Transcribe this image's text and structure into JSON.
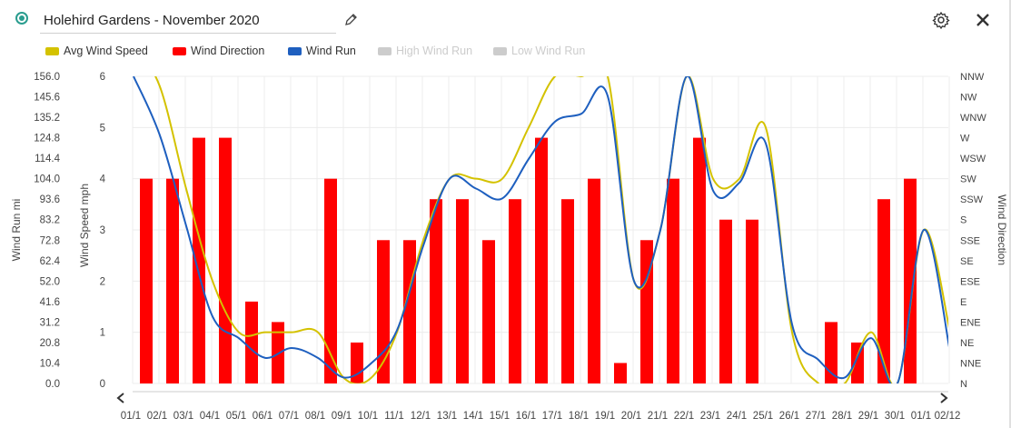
{
  "header": {
    "title": "Holehird Gardens - November 2020",
    "icons": [
      "radio-icon",
      "pencil-icon",
      "gear-icon",
      "close-icon"
    ]
  },
  "legend": [
    {
      "label": "Avg Wind Speed",
      "color": "#d4c200",
      "enabled": true
    },
    {
      "label": "Wind Direction",
      "color": "#ff0000",
      "enabled": true
    },
    {
      "label": "Wind Run",
      "color": "#1e5fbf",
      "enabled": true
    },
    {
      "label": "High Wind Run",
      "color": "#cccccc",
      "enabled": false
    },
    {
      "label": "Low Wind Run",
      "color": "#cccccc",
      "enabled": false
    }
  ],
  "chart_data": {
    "type": "bar",
    "categories": [
      "01/11",
      "02/11",
      "03/11",
      "04/11",
      "05/11",
      "06/11",
      "07/11",
      "08/11",
      "09/11",
      "10/11",
      "11/11",
      "12/11",
      "13/11",
      "14/11",
      "15/11",
      "16/11",
      "17/11",
      "18/11",
      "19/11",
      "20/11",
      "21/11",
      "22/11",
      "23/11",
      "24/11",
      "25/11",
      "26/11",
      "27/11",
      "28/11",
      "29/11",
      "30/11",
      "01/12",
      "02/12"
    ],
    "x_tick_labels": [
      "01/1",
      "02/1",
      "03/1",
      "04/1",
      "05/1",
      "06/1",
      "07/1",
      "08/1",
      "09/1",
      "10/1",
      "11/1",
      "12/1",
      "13/1",
      "14/1",
      "15/1",
      "16/1",
      "17/1",
      "18/1",
      "19/1",
      "20/1",
      "21/1",
      "22/1",
      "23/1",
      "24/1",
      "25/1",
      "26/1",
      "27/1",
      "28/1",
      "29/1",
      "30/1",
      "01/1",
      "02/12"
    ],
    "left_axis": {
      "label": "Wind Run mi",
      "ticks": [
        "156.0",
        "145.6",
        "135.2",
        "124.8",
        "114.4",
        "104.0",
        "93.6",
        "83.2",
        "72.8",
        "62.4",
        "52.0",
        "41.6",
        "31.2",
        "20.8",
        "10.4",
        "0.0"
      ],
      "range": [
        0,
        156
      ]
    },
    "middle_axis": {
      "label": "Wind Speed mph",
      "ticks": [
        "6",
        "5",
        "4",
        "3",
        "2",
        "1",
        "0"
      ],
      "range": [
        0,
        6
      ]
    },
    "right_axis": {
      "label": "Wind Direction",
      "ticks": [
        "NNW",
        "NW",
        "WNW",
        "W",
        "WSW",
        "SW",
        "SSW",
        "S",
        "SSE",
        "SE",
        "ESE",
        "E",
        "ENE",
        "NE",
        "NNE",
        "N"
      ]
    },
    "series": [
      {
        "name": "Wind Direction",
        "kind": "bar",
        "color": "#ff0000",
        "unit_index": "compass points 0=N .. 15=NNW",
        "values": [
          10,
          10,
          12,
          12,
          4,
          3,
          null,
          10,
          2,
          7,
          7,
          9,
          9,
          7,
          9,
          12,
          9,
          10,
          1,
          7,
          10,
          12,
          8,
          8,
          null,
          null,
          3,
          2,
          9,
          10,
          null,
          null
        ]
      },
      {
        "name": "Avg Wind Speed",
        "kind": "line",
        "color": "#d4c200",
        "values": [
          6.6,
          5.8,
          3.8,
          2.0,
          1.0,
          1.0,
          1.0,
          1.0,
          0.1,
          0.1,
          1.0,
          2.8,
          4.0,
          4.0,
          4.0,
          5.0,
          6.0,
          6.0,
          6.0,
          2.0,
          3.0,
          6.0,
          4.0,
          4.0,
          5.0,
          1.0,
          0.0,
          0.0,
          1.0,
          0.0,
          3.0,
          1.0
        ]
      },
      {
        "name": "Wind Run",
        "kind": "line",
        "color": "#1e5fbf",
        "values": [
          156.0,
          126.0,
          80.0,
          34.0,
          23.0,
          13.0,
          18.0,
          13.0,
          3.0,
          10.0,
          27.0,
          70.0,
          104.0,
          99.0,
          94.0,
          114.0,
          133.0,
          137.0,
          146.0,
          52.0,
          78.0,
          156.0,
          98.0,
          102.0,
          122.0,
          30.0,
          12.0,
          3.0,
          23.0,
          0.0,
          78.0,
          16.0
        ]
      }
    ],
    "grid": true
  }
}
